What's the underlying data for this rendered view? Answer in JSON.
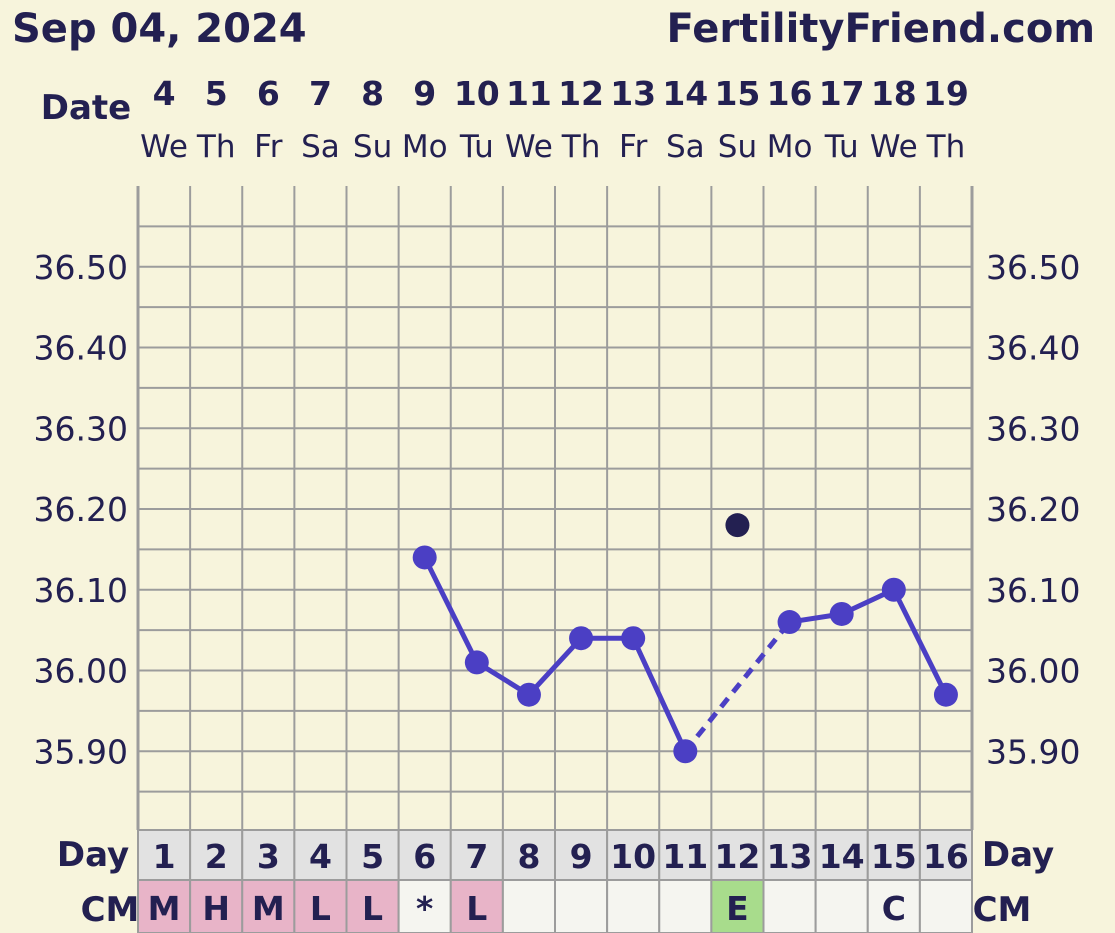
{
  "header": {
    "date": "Sep 04, 2024",
    "site": "FertilityFriend.com"
  },
  "row_labels": {
    "date": "Date",
    "day": "Day",
    "cm": "CM"
  },
  "dates": [
    "4",
    "5",
    "6",
    "7",
    "8",
    "9",
    "10",
    "11",
    "12",
    "13",
    "14",
    "15",
    "16",
    "17",
    "18",
    "19"
  ],
  "weekdays": [
    "We",
    "Th",
    "Fr",
    "Sa",
    "Su",
    "Mo",
    "Tu",
    "We",
    "Th",
    "Fr",
    "Sa",
    "Su",
    "Mo",
    "Tu",
    "We",
    "Th"
  ],
  "cycle_days": [
    "1",
    "2",
    "3",
    "4",
    "5",
    "6",
    "7",
    "8",
    "9",
    "10",
    "11",
    "12",
    "13",
    "14",
    "15",
    "16"
  ],
  "cm_values": [
    "M",
    "H",
    "M",
    "L",
    "L",
    "*",
    "L",
    "",
    "",
    "",
    "",
    "E",
    "",
    "",
    "C",
    ""
  ],
  "y_tick_labels": [
    "36.50",
    "36.40",
    "36.30",
    "36.20",
    "36.10",
    "36.00",
    "35.90"
  ],
  "colors": {
    "background": "#f7f4dc",
    "line": "#4b3fc4",
    "discarded_point": "#232051",
    "grid": "#9c9c9c",
    "menstruation_cell": "#e8b4c8",
    "spotting_cell": "#f5f5f0",
    "eggwhite_cell": "#a8dc8c",
    "empty_cell": "#f5f5f0",
    "day_row": "#e2e2e2",
    "text": "#232051"
  },
  "chart_data": {
    "type": "line",
    "title": "",
    "xlabel": "Date",
    "ylabel": "",
    "x": [
      "4",
      "5",
      "6",
      "7",
      "8",
      "9",
      "10",
      "11",
      "12",
      "13",
      "14",
      "15",
      "16",
      "17",
      "18",
      "19"
    ],
    "ylim": [
      35.8,
      36.6
    ],
    "grid": true,
    "series": [
      {
        "values": [
          null,
          null,
          null,
          null,
          null,
          36.14,
          36.01,
          35.97,
          36.04,
          36.04,
          35.9,
          null,
          36.06,
          36.07,
          36.1,
          35.97
        ]
      }
    ],
    "discarded_points": [
      {
        "x": "15",
        "y": 36.18
      }
    ],
    "dashed_gap": {
      "from": "14",
      "to": "16"
    }
  }
}
